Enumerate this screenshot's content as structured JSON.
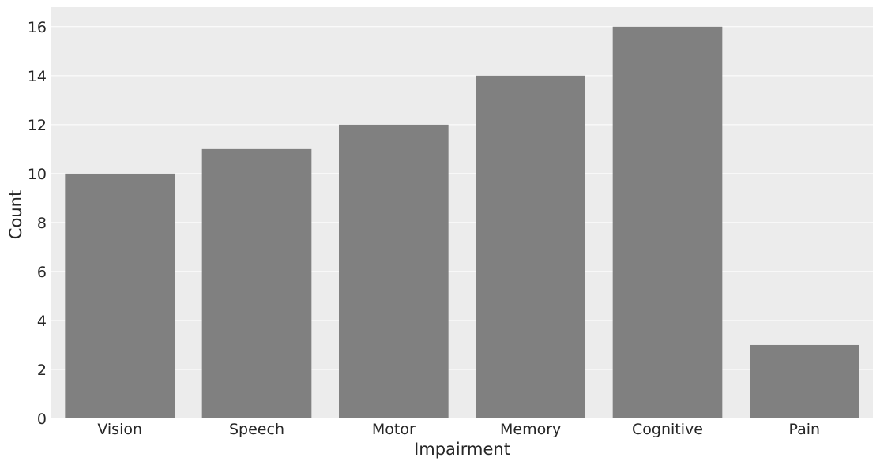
{
  "chart_data": {
    "type": "bar",
    "title": "",
    "xlabel": "Impairment",
    "ylabel": "Count",
    "categories": [
      "Vision",
      "Speech",
      "Motor",
      "Memory",
      "Cognitive",
      "Pain"
    ],
    "values": [
      10,
      11,
      12,
      14,
      16,
      3
    ],
    "ylim": [
      0,
      16.8
    ],
    "yticks": [
      0,
      2,
      4,
      6,
      8,
      10,
      12,
      14,
      16
    ],
    "grid": true,
    "legend": "none",
    "bar_color": "#808080",
    "background_color": "#ececec",
    "grid_color": "#ffffff"
  }
}
